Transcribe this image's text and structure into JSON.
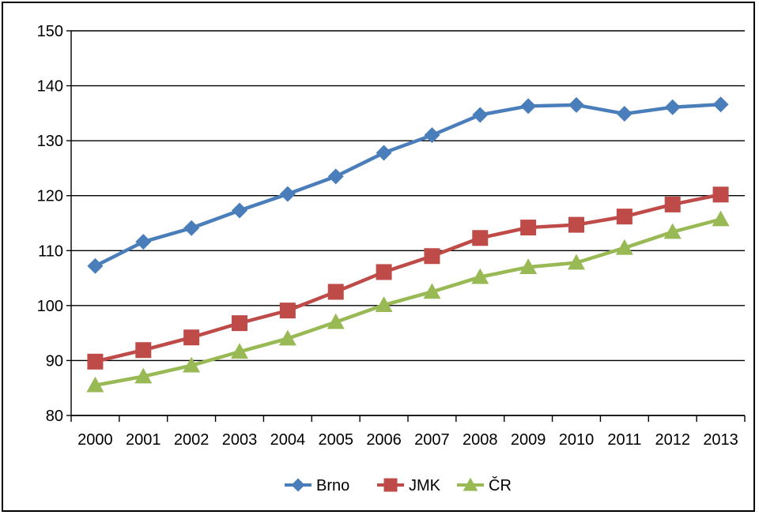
{
  "chart_data": {
    "type": "line",
    "title": "",
    "xlabel": "",
    "ylabel": "",
    "x": [
      "2000",
      "2001",
      "2002",
      "2003",
      "2004",
      "2005",
      "2006",
      "2007",
      "2008",
      "2009",
      "2010",
      "2011",
      "2012",
      "2013"
    ],
    "ylim": [
      80,
      150
    ],
    "yticks": [
      80,
      90,
      100,
      110,
      120,
      130,
      140,
      150
    ],
    "grid": true,
    "legend_position": "bottom",
    "series": [
      {
        "name": "Brno",
        "color": "#4a7ebb",
        "marker": "diamond",
        "values": [
          107.2,
          111.6,
          114.1,
          117.3,
          120.3,
          123.5,
          127.8,
          131.0,
          134.7,
          136.3,
          136.5,
          134.9,
          136.1,
          136.6
        ]
      },
      {
        "name": "JMK",
        "color": "#be4b48",
        "marker": "square",
        "values": [
          89.8,
          91.9,
          94.2,
          96.8,
          99.1,
          102.5,
          106.1,
          109.0,
          112.3,
          114.2,
          114.7,
          116.2,
          118.4,
          120.2
        ]
      },
      {
        "name": "ČR",
        "color": "#98b954",
        "marker": "triangle",
        "values": [
          85.5,
          87.1,
          89.1,
          91.6,
          94.0,
          97.0,
          100.1,
          102.5,
          105.2,
          107.0,
          107.8,
          110.5,
          113.4,
          115.7
        ]
      }
    ]
  }
}
